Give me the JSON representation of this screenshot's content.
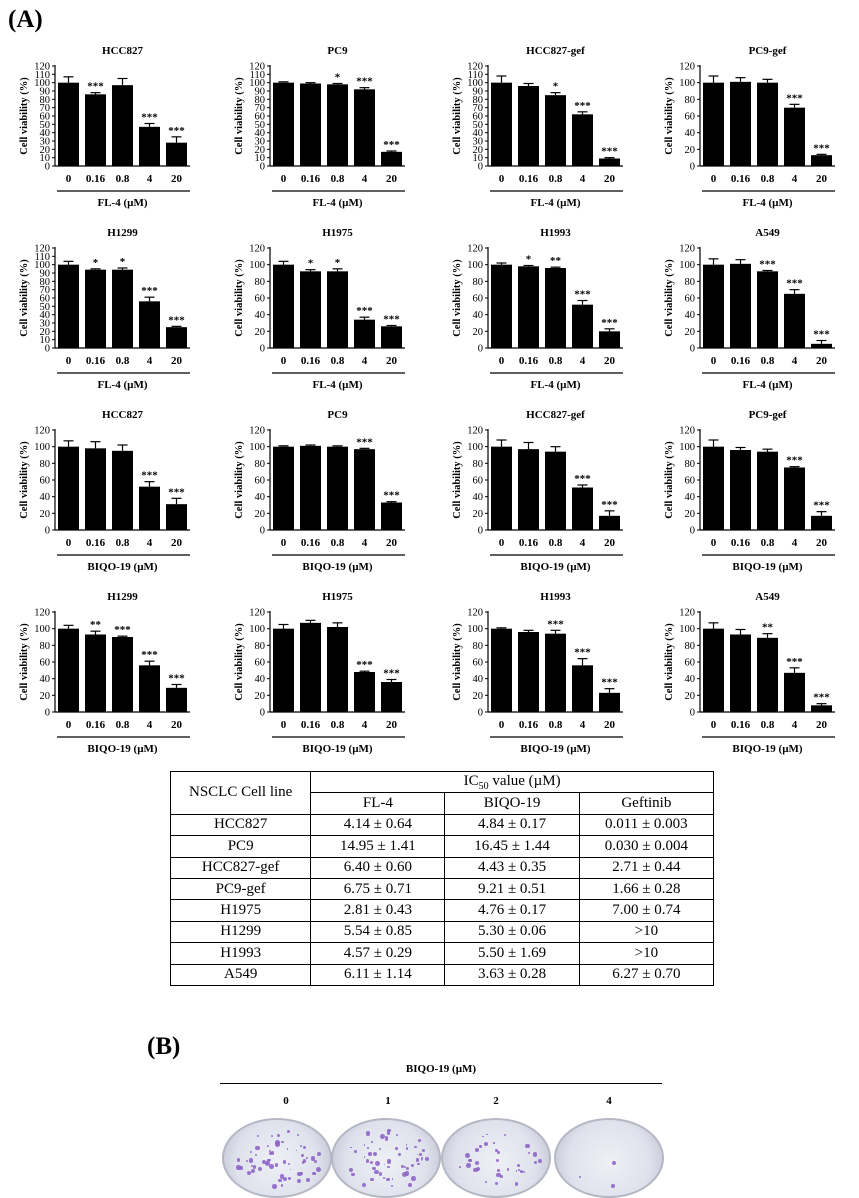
{
  "panel_labels": {
    "a": "(A)",
    "b": "(B)"
  },
  "chart_data": [
    {
      "type": "bar",
      "title": "HCC827",
      "xlabel": "FL-4 (µM)",
      "ylabel": "Cell viability (%)",
      "ylim": [
        0,
        120
      ],
      "yticks": [
        0,
        10,
        20,
        30,
        40,
        50,
        60,
        70,
        80,
        90,
        100,
        110,
        120
      ],
      "categories": [
        "0",
        "0.16",
        "0.8",
        "4",
        "20"
      ],
      "values": [
        100,
        86,
        97,
        47,
        28
      ],
      "errors": [
        7,
        2,
        8,
        4,
        7
      ],
      "significance": [
        "",
        "***",
        "",
        "***",
        "***"
      ]
    },
    {
      "type": "bar",
      "title": "PC9",
      "xlabel": "FL-4 (µM)",
      "ylabel": "Cell viability (%)",
      "ylim": [
        0,
        120
      ],
      "yticks": [
        0,
        10,
        20,
        30,
        40,
        50,
        60,
        70,
        80,
        90,
        100,
        110,
        120
      ],
      "categories": [
        "0",
        "0.16",
        "0.8",
        "4",
        "20"
      ],
      "values": [
        100,
        99,
        98,
        92,
        17
      ],
      "errors": [
        1,
        1,
        1,
        2,
        1
      ],
      "significance": [
        "",
        "",
        "*",
        "***",
        "***"
      ]
    },
    {
      "type": "bar",
      "title": "HCC827-gef",
      "xlabel": "FL-4 (µM)",
      "ylabel": "Cell viability (%)",
      "ylim": [
        0,
        120
      ],
      "yticks": [
        0,
        10,
        20,
        30,
        40,
        50,
        60,
        70,
        80,
        90,
        100,
        110,
        120
      ],
      "categories": [
        "0",
        "0.16",
        "0.8",
        "4",
        "20"
      ],
      "values": [
        100,
        96,
        85,
        62,
        9
      ],
      "errors": [
        8,
        3,
        3,
        3,
        1
      ],
      "significance": [
        "",
        "",
        "*",
        "***",
        "***"
      ]
    },
    {
      "type": "bar",
      "title": "PC9-gef",
      "xlabel": "FL-4 (µM)",
      "ylabel": "Cell viability (%)",
      "ylim": [
        0,
        120
      ],
      "yticks": [
        0,
        20,
        40,
        60,
        80,
        100,
        120
      ],
      "categories": [
        "0",
        "0.16",
        "0.8",
        "4",
        "20"
      ],
      "values": [
        100,
        101,
        100,
        70,
        13
      ],
      "errors": [
        8,
        5,
        4,
        4,
        1
      ],
      "significance": [
        "",
        "",
        "",
        "***",
        "***"
      ]
    },
    {
      "type": "bar",
      "title": "H1299",
      "xlabel": "FL-4 (µM)",
      "ylabel": "Cell viability (%)",
      "ylim": [
        0,
        120
      ],
      "yticks": [
        0,
        10,
        20,
        30,
        40,
        50,
        60,
        70,
        80,
        90,
        100,
        110,
        120
      ],
      "categories": [
        "0",
        "0.16",
        "0.8",
        "4",
        "20"
      ],
      "values": [
        100,
        94,
        94,
        56,
        25
      ],
      "errors": [
        4,
        1,
        2,
        5,
        1
      ],
      "significance": [
        "",
        "*",
        "*",
        "***",
        "***"
      ]
    },
    {
      "type": "bar",
      "title": "H1975",
      "xlabel": "FL-4 (µM)",
      "ylabel": "Cell viability (%)",
      "ylim": [
        0,
        120
      ],
      "yticks": [
        0,
        20,
        40,
        60,
        80,
        100,
        120
      ],
      "categories": [
        "0",
        "0.16",
        "0.8",
        "4",
        "20"
      ],
      "values": [
        100,
        92,
        92,
        34,
        26
      ],
      "errors": [
        4,
        2,
        3,
        3,
        1
      ],
      "significance": [
        "",
        "*",
        "*",
        "***",
        "***"
      ]
    },
    {
      "type": "bar",
      "title": "H1993",
      "xlabel": "FL-4 (µM)",
      "ylabel": "Cell viability (%)",
      "ylim": [
        0,
        120
      ],
      "yticks": [
        0,
        20,
        40,
        60,
        80,
        100,
        120
      ],
      "categories": [
        "0",
        "0.16",
        "0.8",
        "4",
        "20"
      ],
      "values": [
        100,
        98,
        96,
        52,
        20
      ],
      "errors": [
        2,
        1,
        1,
        5,
        3
      ],
      "significance": [
        "",
        "*",
        "**",
        "***",
        "***"
      ]
    },
    {
      "type": "bar",
      "title": "A549",
      "xlabel": "FL-4 (µM)",
      "ylabel": "Cell viability (%)",
      "ylim": [
        0,
        120
      ],
      "yticks": [
        0,
        20,
        40,
        60,
        80,
        100,
        120
      ],
      "categories": [
        "0",
        "0.16",
        "0.8",
        "4",
        "20"
      ],
      "values": [
        100,
        101,
        92,
        65,
        5
      ],
      "errors": [
        7,
        5,
        1,
        5,
        4
      ],
      "significance": [
        "",
        "",
        "***",
        "***",
        "***"
      ]
    },
    {
      "type": "bar",
      "title": "HCC827",
      "xlabel": "BIQO-19 (µM)",
      "ylabel": "Cell viability (%)",
      "ylim": [
        0,
        120
      ],
      "yticks": [
        0,
        20,
        40,
        60,
        80,
        100,
        120
      ],
      "categories": [
        "0",
        "0.16",
        "0.8",
        "4",
        "20"
      ],
      "values": [
        100,
        98,
        95,
        52,
        31
      ],
      "errors": [
        7,
        8,
        7,
        6,
        7
      ],
      "significance": [
        "",
        "",
        "",
        "***",
        "***"
      ]
    },
    {
      "type": "bar",
      "title": "PC9",
      "xlabel": "BIQO-19 (µM)",
      "ylabel": "Cell viability (%)",
      "ylim": [
        0,
        120
      ],
      "yticks": [
        0,
        20,
        40,
        60,
        80,
        100,
        120
      ],
      "categories": [
        "0",
        "0.16",
        "0.8",
        "4",
        "20"
      ],
      "values": [
        100,
        101,
        100,
        97,
        33
      ],
      "errors": [
        1,
        1,
        1,
        1,
        1
      ],
      "significance": [
        "",
        "",
        "",
        "***",
        "***"
      ]
    },
    {
      "type": "bar",
      "title": "HCC827-gef",
      "xlabel": "BIQO-19 (µM)",
      "ylabel": "Cell viability (%)",
      "ylim": [
        0,
        120
      ],
      "yticks": [
        0,
        20,
        40,
        60,
        80,
        100,
        120
      ],
      "categories": [
        "0",
        "0.16",
        "0.8",
        "4",
        "20"
      ],
      "values": [
        100,
        97,
        94,
        51,
        17
      ],
      "errors": [
        8,
        8,
        6,
        3,
        6
      ],
      "significance": [
        "",
        "",
        "",
        "***",
        "***"
      ]
    },
    {
      "type": "bar",
      "title": "PC9-gef",
      "xlabel": "BIQO-19 (µM)",
      "ylabel": "Cell viability (%)",
      "ylim": [
        0,
        120
      ],
      "yticks": [
        0,
        20,
        40,
        60,
        80,
        100,
        120
      ],
      "categories": [
        "0",
        "0.16",
        "0.8",
        "4",
        "20"
      ],
      "values": [
        100,
        96,
        94,
        75,
        17
      ],
      "errors": [
        8,
        3,
        3,
        1,
        5
      ],
      "significance": [
        "",
        "",
        "",
        "***",
        "***"
      ]
    },
    {
      "type": "bar",
      "title": "H1299",
      "xlabel": "BIQO-19 (µM)",
      "ylabel": "Cell viability (%)",
      "ylim": [
        0,
        120
      ],
      "yticks": [
        0,
        20,
        40,
        60,
        80,
        100,
        120
      ],
      "categories": [
        "0",
        "0.16",
        "0.8",
        "4",
        "20"
      ],
      "values": [
        100,
        93,
        90,
        56,
        29
      ],
      "errors": [
        4,
        4,
        1,
        5,
        4
      ],
      "significance": [
        "",
        "**",
        "***",
        "***",
        "***"
      ]
    },
    {
      "type": "bar",
      "title": "H1975",
      "xlabel": "BIQO-19 (µM)",
      "ylabel": "Cell viability (%)",
      "ylim": [
        0,
        120
      ],
      "yticks": [
        0,
        20,
        40,
        60,
        80,
        100,
        120
      ],
      "categories": [
        "0",
        "0.16",
        "0.8",
        "4",
        "20"
      ],
      "values": [
        100,
        107,
        102,
        48,
        36
      ],
      "errors": [
        5,
        3,
        5,
        1,
        3
      ],
      "significance": [
        "",
        "",
        "",
        "***",
        "***"
      ]
    },
    {
      "type": "bar",
      "title": "H1993",
      "xlabel": "BIQO-19 (µM)",
      "ylabel": "Cell viability (%)",
      "ylim": [
        0,
        120
      ],
      "yticks": [
        0,
        20,
        40,
        60,
        80,
        100,
        120
      ],
      "categories": [
        "0",
        "0.16",
        "0.8",
        "4",
        "20"
      ],
      "values": [
        100,
        96,
        94,
        56,
        23
      ],
      "errors": [
        1,
        2,
        4,
        8,
        5
      ],
      "significance": [
        "",
        "",
        "***",
        "***",
        "***"
      ]
    },
    {
      "type": "bar",
      "title": "A549",
      "xlabel": "BIQO-19 (µM)",
      "ylabel": "Cell viability (%)",
      "ylim": [
        0,
        120
      ],
      "yticks": [
        0,
        20,
        40,
        60,
        80,
        100,
        120
      ],
      "categories": [
        "0",
        "0.16",
        "0.8",
        "4",
        "20"
      ],
      "values": [
        100,
        93,
        89,
        47,
        8
      ],
      "errors": [
        7,
        6,
        5,
        6,
        2
      ],
      "significance": [
        "",
        "",
        "**",
        "***",
        "***"
      ]
    },
    {
      "type": "table",
      "header_corner": "NSCLC Cell line",
      "header_group": {
        "prefix": "IC",
        "sub": "50",
        "suffix": " value (µM)"
      },
      "columns": [
        "FL-4",
        "BIQO-19",
        "Geftinib"
      ],
      "rows": [
        [
          "HCC827",
          "4.14 ± 0.64",
          "4.84 ± 0.17",
          "0.011 ± 0.003"
        ],
        [
          "PC9",
          "14.95 ± 1.41",
          "16.45 ± 1.44",
          "0.030 ± 0.004"
        ],
        [
          "HCC827-gef",
          "6.40 ± 0.60",
          "4.43 ± 0.35",
          "2.71 ± 0.44"
        ],
        [
          "PC9-gef",
          "6.75 ± 0.71",
          "9.21 ± 0.51",
          "1.66 ± 0.28"
        ],
        [
          "H1975",
          "2.81 ± 0.43",
          "4.76 ± 0.17",
          "7.00 ± 0.74"
        ],
        [
          "H1299",
          "5.54 ± 0.85",
          "5.30 ± 0.06",
          ">10"
        ],
        [
          "H1993",
          "4.57 ± 0.29",
          "5.50 ± 1.69",
          ">10"
        ],
        [
          "A549",
          "6.11 ± 1.14",
          "3.63 ± 0.28",
          "6.27 ± 0.70"
        ]
      ]
    }
  ],
  "panel_b": {
    "title": "BIQO-19 (µM)",
    "doses": [
      "0",
      "1",
      "2",
      "4"
    ],
    "colony_color": "#8a5fc4"
  }
}
